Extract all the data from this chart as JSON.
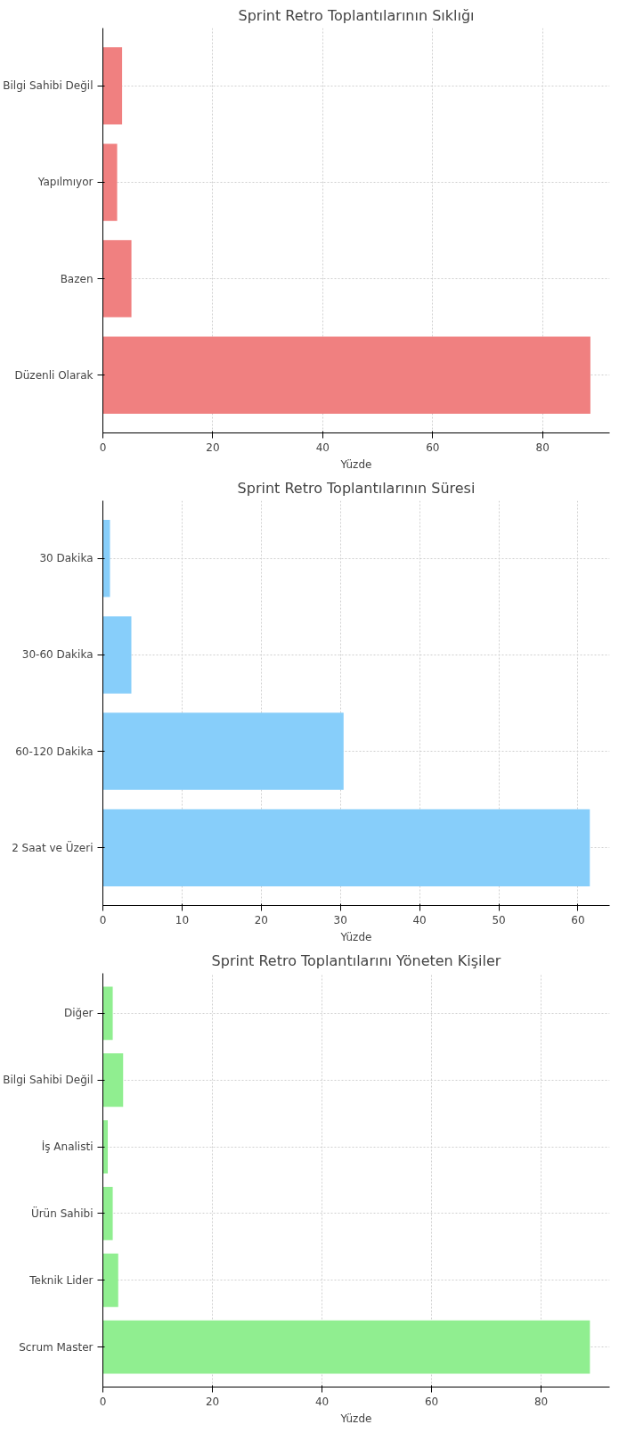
{
  "chart_data": [
    {
      "type": "bar",
      "orientation": "horizontal",
      "title": "Sprint Retro Toplantılarının Sıklığı",
      "xlabel": "Yüzde",
      "categories": [
        "Bilgi Sahibi Değil",
        "Yapılmıyor",
        "Bazen",
        "Düzenli Olarak"
      ],
      "values": [
        3.5,
        2.6,
        5.2,
        88.7
      ],
      "color": "#f08080",
      "xlim": [
        0,
        92.2
      ],
      "xticks": [
        0,
        20,
        40,
        60,
        80
      ],
      "grid": true
    },
    {
      "type": "bar",
      "orientation": "horizontal",
      "title": "Sprint Retro Toplantılarının Süresi",
      "xlabel": "Yüzde",
      "categories": [
        "30 Dakika",
        "30-60 Dakika",
        "60-120 Dakika",
        "2 Saat ve Üzeri"
      ],
      "values": [
        0.9,
        3.6,
        30.4,
        61.5
      ],
      "color": "#87cefa",
      "xlim": [
        0,
        64
      ],
      "xticks": [
        0,
        10,
        20,
        30,
        40,
        50,
        60
      ],
      "grid": true
    },
    {
      "type": "bar",
      "orientation": "horizontal",
      "title": "Sprint Retro Toplantılarını Yöneten Kişiler",
      "xlabel": "Yüzde",
      "categories": [
        "Diğer",
        "Bilgi Sahibi Değil",
        "İş Analisti",
        "Ürün Sahibi",
        "Teknik Lider",
        "Scrum Master"
      ],
      "values": [
        1.8,
        3.7,
        0.9,
        1.8,
        2.8,
        88.9
      ],
      "color": "#90ee90",
      "xlim": [
        0,
        92.5
      ],
      "xticks": [
        0,
        20,
        40,
        60,
        80
      ],
      "grid": true
    }
  ]
}
